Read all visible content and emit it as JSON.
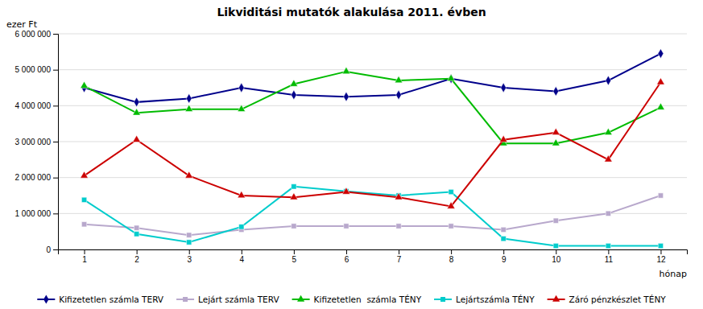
{
  "chart_data": {
    "type": "line",
    "title": "Likviditási mutatók alakulása 2011. évben",
    "xlabel": "hónap",
    "ylabel": "ezer Ft",
    "x": [
      1,
      2,
      3,
      4,
      5,
      6,
      7,
      8,
      9,
      10,
      11,
      12
    ],
    "xlim": [
      0.5,
      12.5
    ],
    "xticks": [
      1,
      2,
      3,
      4,
      5,
      6,
      7,
      8,
      9,
      10,
      11,
      12
    ],
    "ylim": [
      0,
      6000000
    ],
    "yticks": [
      0,
      {
        "value": 1000000,
        "label": "1 000 000"
      },
      {
        "value": 2000000,
        "label": "2 000 000"
      },
      {
        "value": 3000000,
        "label": "3 000 000"
      },
      {
        "value": 4000000,
        "label": "4 000 000"
      },
      {
        "value": 5000000,
        "label": "5 000 000"
      },
      {
        "value": 6000000,
        "label": "6 000 000"
      }
    ],
    "grid": true,
    "legend": "bottom",
    "series": [
      {
        "name": "Kifizetetlen számla TERV",
        "color": "#00008B",
        "marker": "diamond",
        "values": [
          4500000,
          4100000,
          4200000,
          4500000,
          4300000,
          4250000,
          4300000,
          4750000,
          4500000,
          4400000,
          4700000,
          5450000
        ]
      },
      {
        "name": "Lejárt számla TERV",
        "color": "#B8A8CC",
        "marker": "square",
        "values": [
          700000,
          600000,
          400000,
          550000,
          650000,
          650000,
          650000,
          650000,
          550000,
          800000,
          1000000,
          1500000
        ]
      },
      {
        "name": "Kifizetetlen  számla TÉNY",
        "color": "#00BB00",
        "marker": "triangle",
        "values": [
          4550000,
          3800000,
          3900000,
          3900000,
          4600000,
          4950000,
          4700000,
          4750000,
          2950000,
          2950000,
          3250000,
          3950000
        ]
      },
      {
        "name": "Lejártszámla TÉNY",
        "color": "#00CCCC",
        "marker": "square",
        "values": [
          1380000,
          430000,
          200000,
          630000,
          1750000,
          1620000,
          1500000,
          1600000,
          300000,
          100000,
          100000,
          100000
        ]
      },
      {
        "name": "Záró pénzkészlet TÉNY",
        "color": "#CC0000",
        "marker": "triangle",
        "values": [
          2050000,
          3050000,
          2050000,
          1500000,
          1450000,
          1600000,
          1450000,
          1200000,
          3050000,
          3250000,
          2500000,
          4650000
        ]
      }
    ]
  }
}
